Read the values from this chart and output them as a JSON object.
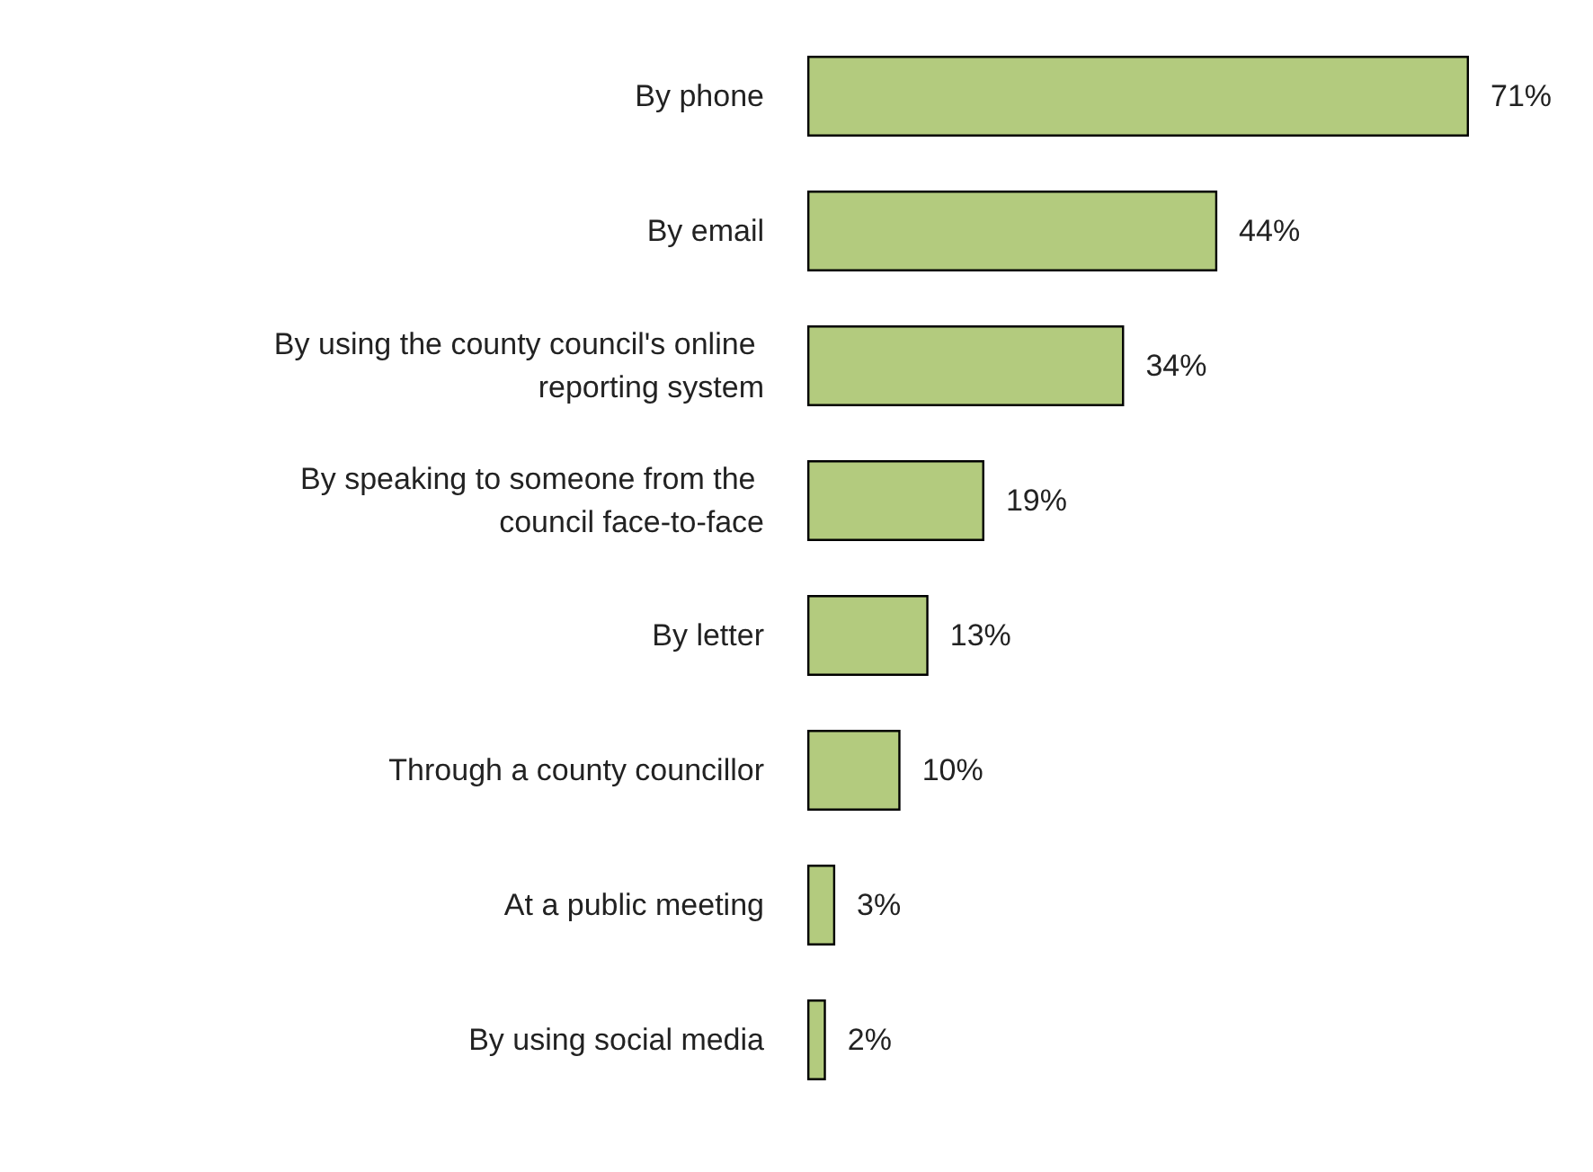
{
  "chart_data": {
    "type": "bar",
    "orientation": "horizontal",
    "categories": [
      "By phone",
      "By email",
      "By using the county council's online reporting system",
      "By speaking to someone from the council face-to-face",
      "By letter",
      "Through a county councillor",
      "At a public meeting",
      "By using social media"
    ],
    "values": [
      71,
      44,
      34,
      19,
      13,
      10,
      3,
      2
    ],
    "value_labels": [
      "71%",
      "44%",
      "34%",
      "19%",
      "13%",
      "10%",
      "3%",
      "2%"
    ],
    "color": "#b3cb7e"
  }
}
